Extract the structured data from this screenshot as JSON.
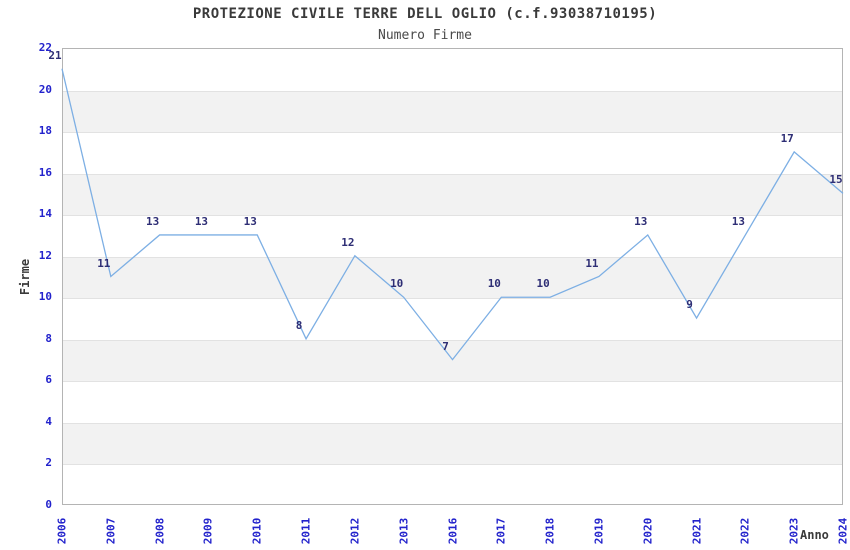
{
  "chart_data": {
    "type": "line",
    "title": "PROTEZIONE CIVILE TERRE DELL OGLIO (c.f.93038710195)",
    "subtitle": "Numero Firme",
    "xlabel": "Anno",
    "ylabel": "Firme",
    "categories": [
      "2006",
      "2007",
      "2008",
      "2009",
      "2010",
      "2011",
      "2012",
      "2013",
      "2016",
      "2017",
      "2018",
      "2019",
      "2020",
      "2021",
      "2022",
      "2023",
      "2024"
    ],
    "values": [
      21,
      11,
      13,
      13,
      13,
      8,
      12,
      10,
      7,
      10,
      10,
      11,
      13,
      9,
      13,
      17,
      15
    ],
    "ylim": [
      0,
      22
    ],
    "ytick_step": 2,
    "grid": "horizontal alternating bands, light gridlines at even values",
    "legend_position": "none",
    "colors": {
      "line": "#7dafe4",
      "tick_label": "#2222cc",
      "data_label": "#2e2e75",
      "band": "#f2f2f2",
      "gridline": "#e2e2e2",
      "plot_border": "#b4b4b4",
      "title": "#3a3a3a",
      "subtitle": "#4a4a4a",
      "axis_label": "#3a3a3a"
    }
  }
}
